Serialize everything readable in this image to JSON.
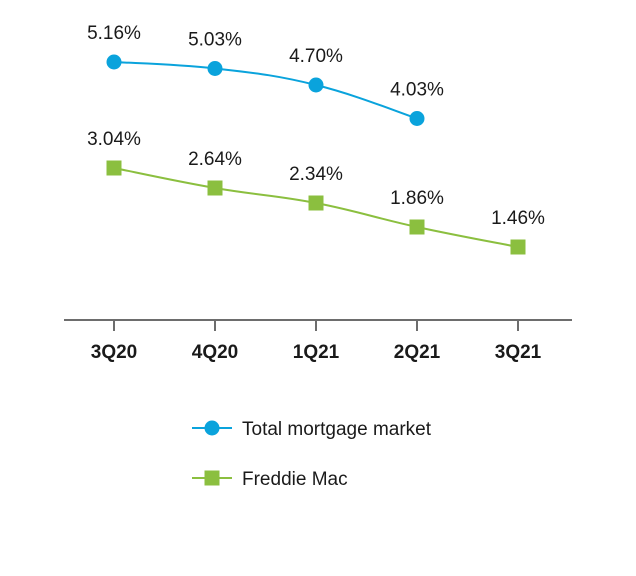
{
  "chart_data": {
    "type": "line",
    "categories": [
      "3Q20",
      "4Q20",
      "1Q21",
      "2Q21",
      "3Q21"
    ],
    "ylim": [
      0,
      6
    ],
    "grid": false,
    "legend_position": "bottom",
    "series": [
      {
        "name": "Total mortgage market",
        "color": "#0aa3dc",
        "marker": "circle",
        "values": [
          5.16,
          5.03,
          4.7,
          4.03,
          null
        ],
        "labels": [
          "5.16%",
          "5.03%",
          "4.70%",
          "4.03%",
          null
        ]
      },
      {
        "name": "Freddie Mac",
        "color": "#8bbf3f",
        "marker": "square",
        "values": [
          3.04,
          2.64,
          2.34,
          1.86,
          1.46
        ],
        "labels": [
          "3.04%",
          "2.64%",
          "2.34%",
          "1.86%",
          "1.46%"
        ]
      }
    ],
    "axis_color": "#6d6d6d"
  }
}
